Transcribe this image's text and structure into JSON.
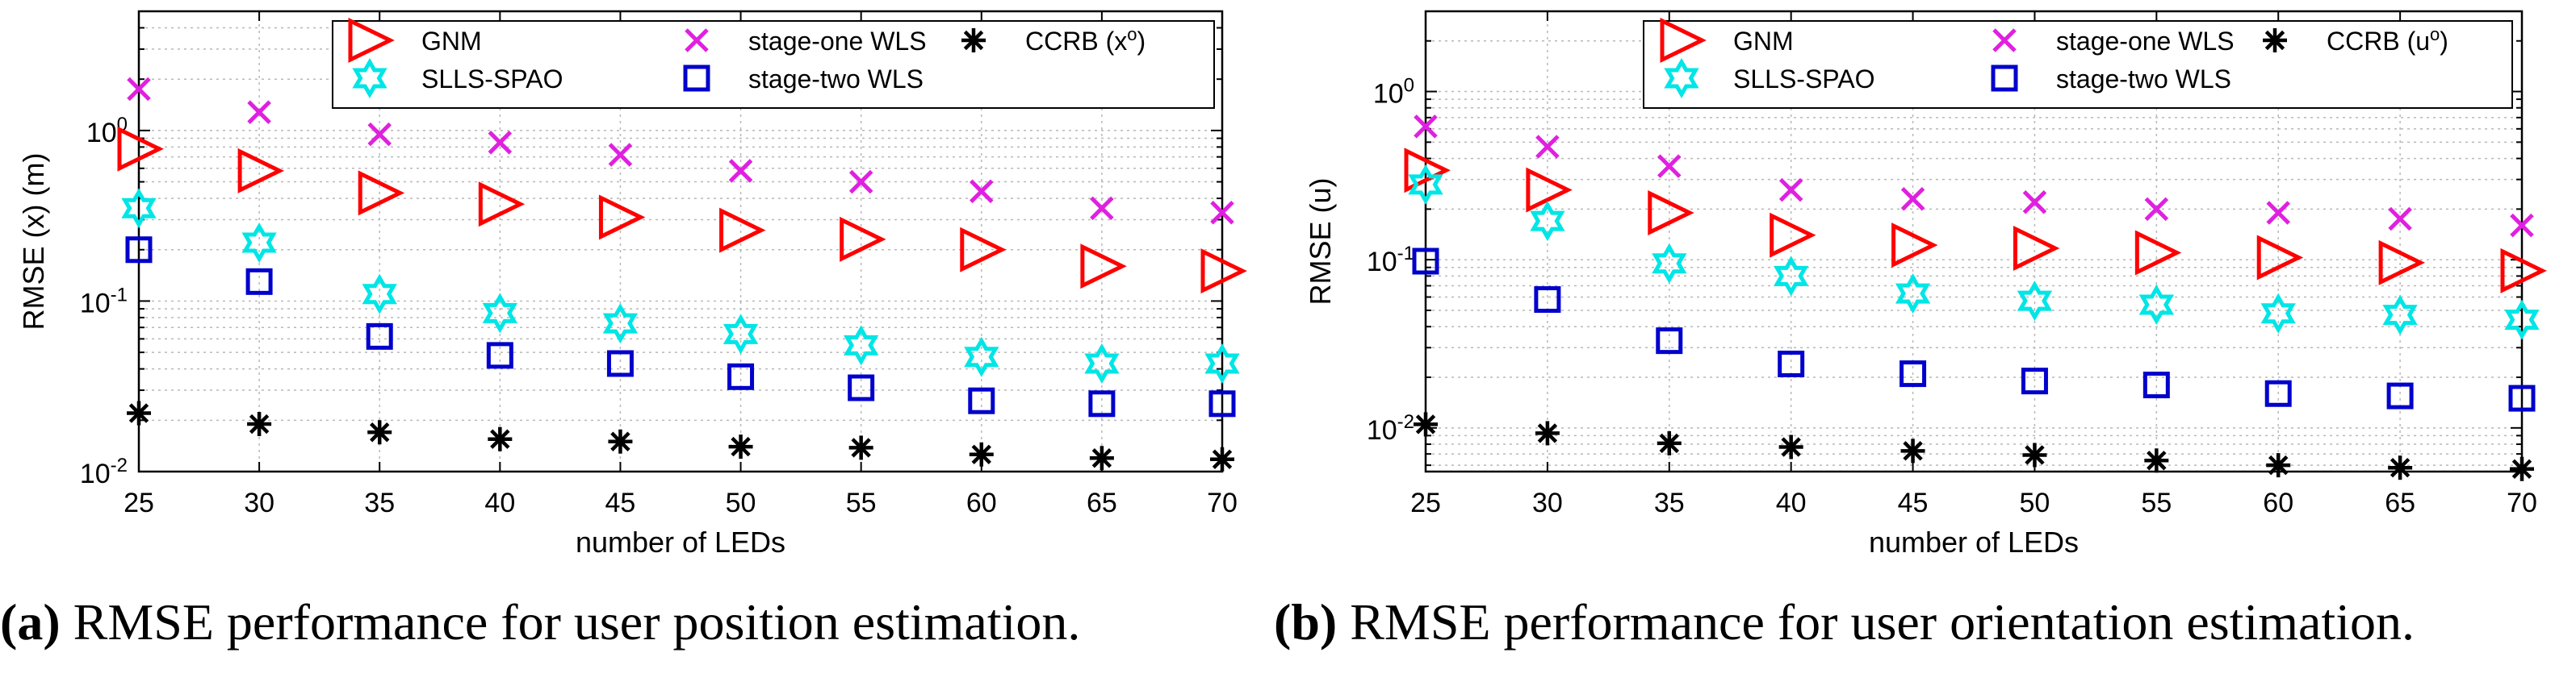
{
  "panels": [
    {
      "caption": {
        "label": "(a)",
        "text": "RMSE performance for user position estimation."
      }
    },
    {
      "caption": {
        "label": "(b)",
        "text": "RMSE performance for user orientation estimation."
      }
    }
  ],
  "chart_data": [
    {
      "type": "scatter",
      "title": "",
      "xlabel": "number of LEDs",
      "ylabel": "RMSE (x) (m)",
      "xlim": [
        25,
        70
      ],
      "ylim": [
        0.01,
        5
      ],
      "yscale": "log",
      "grid": true,
      "legend_position": "top-right",
      "x": [
        25,
        30,
        35,
        40,
        45,
        50,
        55,
        60,
        65,
        70
      ],
      "xticks": [
        "25",
        "30",
        "35",
        "40",
        "45",
        "50",
        "55",
        "60",
        "65",
        "70"
      ],
      "yticks": [
        {
          "base": "10",
          "exp": "-2",
          "value": 0.01
        },
        {
          "base": "10",
          "exp": "-1",
          "value": 0.1
        },
        {
          "base": "10",
          "exp": "0",
          "value": 1
        }
      ],
      "series": [
        {
          "name": "GNM",
          "marker": "triangle-right",
          "color": "#ff0000",
          "values": [
            0.78,
            0.58,
            0.43,
            0.37,
            0.31,
            0.26,
            0.23,
            0.2,
            0.16,
            0.15
          ]
        },
        {
          "name": "stage-one WLS",
          "marker": "x",
          "color": "#e020e0",
          "values": [
            1.75,
            1.28,
            0.95,
            0.85,
            0.72,
            0.58,
            0.5,
            0.44,
            0.35,
            0.33
          ]
        },
        {
          "name": "CCRB (x",
          "name_sup": "o",
          "name_tail": ")",
          "marker": "asterisk",
          "color": "#000000",
          "values": [
            0.022,
            0.019,
            0.017,
            0.0155,
            0.015,
            0.014,
            0.0138,
            0.0126,
            0.012,
            0.0118
          ]
        },
        {
          "name": "SLLS-SPAO",
          "marker": "hexagram",
          "color": "#00e5e5",
          "values": [
            0.35,
            0.22,
            0.11,
            0.085,
            0.074,
            0.064,
            0.055,
            0.047,
            0.043,
            0.043
          ]
        },
        {
          "name": "stage-two WLS",
          "marker": "square",
          "color": "#0000cc",
          "values": [
            0.2,
            0.13,
            0.062,
            0.048,
            0.043,
            0.036,
            0.031,
            0.026,
            0.025,
            0.025
          ]
        }
      ]
    },
    {
      "type": "scatter",
      "title": "",
      "xlabel": "number of LEDs",
      "ylabel": "RMSE (u)",
      "xlim": [
        25,
        70
      ],
      "ylim": [
        0.0055,
        3
      ],
      "yscale": "log",
      "grid": true,
      "legend_position": "top-right",
      "x": [
        25,
        30,
        35,
        40,
        45,
        50,
        55,
        60,
        65,
        70
      ],
      "xticks": [
        "25",
        "30",
        "35",
        "40",
        "45",
        "50",
        "55",
        "60",
        "65",
        "70"
      ],
      "yticks": [
        {
          "base": "10",
          "exp": "-2",
          "value": 0.01
        },
        {
          "base": "10",
          "exp": "-1",
          "value": 0.1
        },
        {
          "base": "10",
          "exp": "0",
          "value": 1
        }
      ],
      "series": [
        {
          "name": "GNM",
          "marker": "triangle-right",
          "color": "#ff0000",
          "values": [
            0.34,
            0.26,
            0.19,
            0.14,
            0.122,
            0.117,
            0.11,
            0.103,
            0.096,
            0.086
          ]
        },
        {
          "name": "stage-one WLS",
          "marker": "x",
          "color": "#e020e0",
          "values": [
            0.62,
            0.47,
            0.36,
            0.26,
            0.23,
            0.22,
            0.2,
            0.19,
            0.175,
            0.16
          ]
        },
        {
          "name": "CCRB (u",
          "name_sup": "o",
          "name_tail": ")",
          "marker": "asterisk",
          "color": "#000000",
          "values": [
            0.0105,
            0.0093,
            0.0081,
            0.0077,
            0.0073,
            0.0069,
            0.0064,
            0.006,
            0.0058,
            0.0057
          ]
        },
        {
          "name": "SLLS-SPAO",
          "marker": "hexagram",
          "color": "#00e5e5",
          "values": [
            0.28,
            0.17,
            0.095,
            0.08,
            0.063,
            0.057,
            0.054,
            0.048,
            0.047,
            0.044
          ]
        },
        {
          "name": "stage-two WLS",
          "marker": "square",
          "color": "#0000cc",
          "values": [
            0.098,
            0.058,
            0.033,
            0.024,
            0.021,
            0.019,
            0.018,
            0.016,
            0.0155,
            0.015
          ]
        }
      ]
    }
  ]
}
